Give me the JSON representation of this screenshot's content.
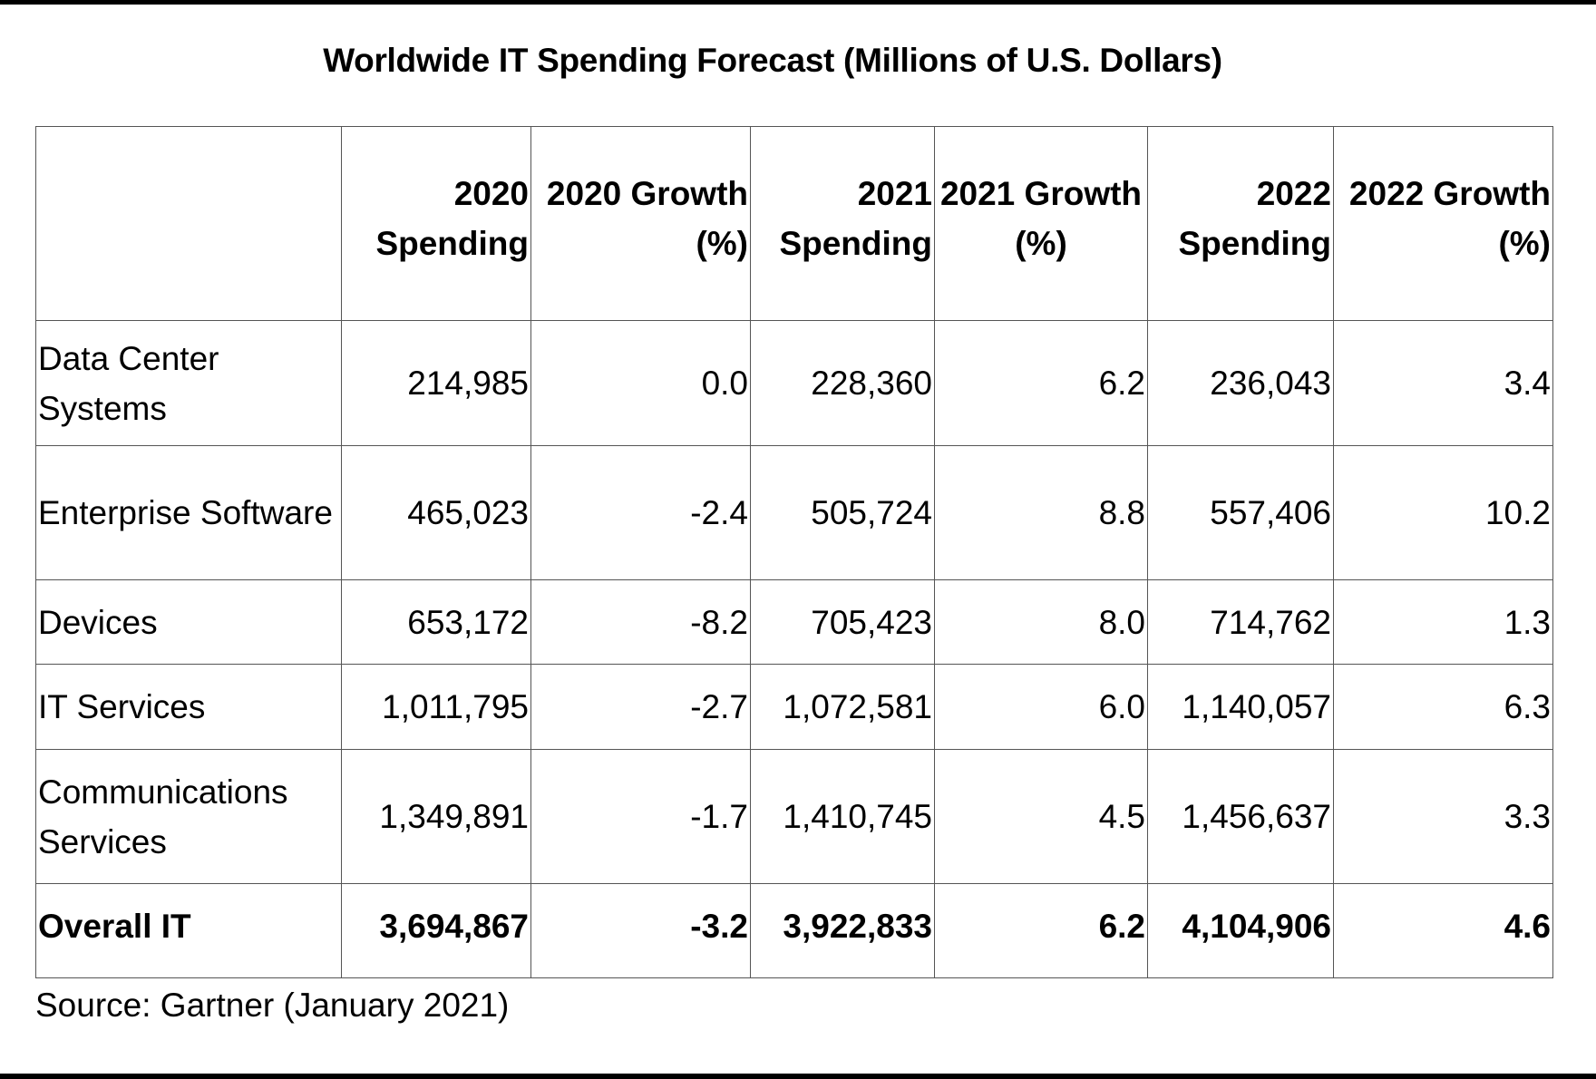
{
  "title": "Worldwide IT Spending Forecast (Millions of U.S. Dollars)",
  "table": {
    "headers": [
      "",
      "2020 Spending",
      "2020 Growth (%)",
      "2021 Spending",
      "2021 Growth (%)",
      "2022 Spending",
      "2022 Growth (%)"
    ],
    "rows": [
      [
        "Data Center Systems",
        "214,985",
        "0.0",
        "228,360",
        "6.2",
        "236,043",
        "3.4"
      ],
      [
        "Enterprise Software",
        "465,023",
        "-2.4",
        "505,724",
        "8.8",
        "557,406",
        "10.2"
      ],
      [
        "Devices",
        "653,172",
        "-8.2",
        "705,423",
        "8.0",
        "714,762",
        "1.3"
      ],
      [
        "IT Services",
        "1,011,795",
        "-2.7",
        "1,072,581",
        "6.0",
        "1,140,057",
        "6.3"
      ],
      [
        "Communications Services",
        "1,349,891",
        "-1.7",
        "1,410,745",
        "4.5",
        "1,456,637",
        "3.3"
      ],
      [
        "Overall IT",
        "3,694,867",
        "-3.2",
        "3,922,833",
        "6.2",
        "4,104,906",
        "4.6"
      ]
    ]
  },
  "source": "Source: Gartner (January 2021)"
}
